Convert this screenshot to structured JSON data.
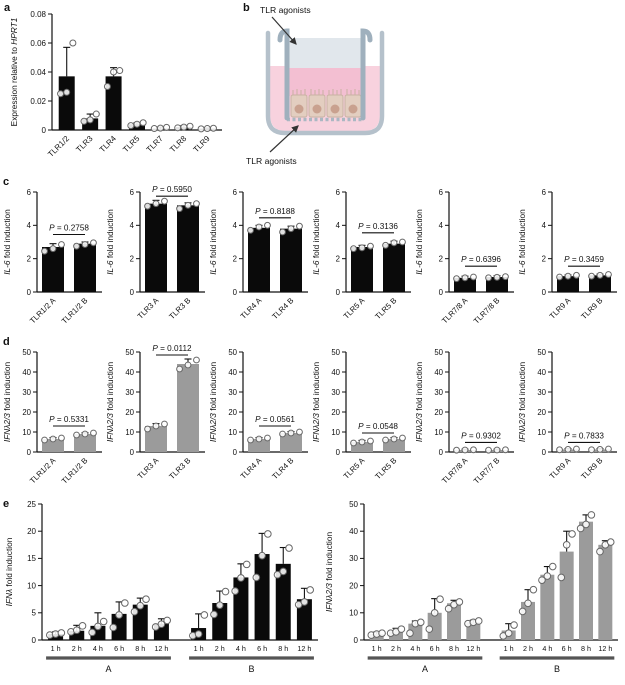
{
  "panels": {
    "a": "a",
    "b": "b",
    "c": "c",
    "d": "d",
    "e": "e"
  },
  "panel_b": {
    "top_label": "TLR agonists",
    "bottom_label": "TLR agonists",
    "colors": {
      "outer_wall": "#b5c1cb",
      "outer_liquid": "#f8d2de",
      "insert_wall": "#9fb0bd",
      "insert_top_medium": "#e1e7ec",
      "insert_pink_medium": "#f3bfd2",
      "cell_body": "#e3cec0",
      "cell_outline": "#c9b2a3",
      "cell_nucleus": "#c9a18f",
      "arrow": "#333333"
    }
  },
  "chart_data": [
    {
      "id": "a",
      "type": "bar",
      "bar_color": "#0a0a0a",
      "ylabel": [
        {
          "t": "Expression relative to ",
          "i": false
        },
        {
          "t": "HPRT1",
          "i": true
        }
      ],
      "ylim": [
        0,
        0.08
      ],
      "yticks": [
        0,
        0.02,
        0.04,
        0.06,
        0.08
      ],
      "ytick_labels": [
        "0",
        "0.02",
        "0.04",
        "0.06",
        "0.08"
      ],
      "bars": [
        {
          "label": "TLR1/2",
          "value": 0.037,
          "err": 0.057,
          "dots": [
            0.025,
            0.026,
            0.06
          ]
        },
        {
          "label": "TLR3",
          "value": 0.008,
          "err": 0.011,
          "dots": [
            0.006,
            0.007,
            0.011
          ]
        },
        {
          "label": "TLR4",
          "value": 0.037,
          "err": 0.043,
          "dots": [
            0.03,
            0.04,
            0.041
          ]
        },
        {
          "label": "TLR5",
          "value": 0.004,
          "err": 0.005,
          "dots": [
            0.003,
            0.004,
            0.005
          ]
        },
        {
          "label": "TLR7",
          "value": 0.001,
          "err": 0.002,
          "dots": [
            0.001,
            0.0013,
            0.0018
          ]
        },
        {
          "label": "TLR8",
          "value": 0.002,
          "err": 0.003,
          "dots": [
            0.0015,
            0.002,
            0.0026
          ]
        },
        {
          "label": "TLR9",
          "value": 0.001,
          "err": 0.0014,
          "dots": [
            0.0008,
            0.001,
            0.0012
          ]
        }
      ]
    },
    {
      "id": "c1",
      "type": "bar",
      "bar_color": "#0a0a0a",
      "ylabel": [
        {
          "t": "IL-6",
          "i": true
        },
        {
          "t": " fold induction",
          "i": false
        }
      ],
      "ylim": [
        0,
        6
      ],
      "yticks": [
        0,
        2,
        4,
        6
      ],
      "ytick_labels": [
        "0",
        "2",
        "4",
        "6"
      ],
      "p": {
        "label": "P = 0.2758",
        "y": 3.45
      },
      "bars": [
        {
          "label": "TLR1/2 A",
          "value": 2.7,
          "err": 2.9,
          "dots": [
            2.45,
            2.6,
            2.85
          ]
        },
        {
          "label": "TLR1/2 B",
          "value": 2.9,
          "err": 3.0,
          "dots": [
            2.75,
            2.85,
            2.95
          ]
        }
      ]
    },
    {
      "id": "c2",
      "type": "bar",
      "bar_color": "#0a0a0a",
      "ylabel": [
        {
          "t": "IL-6",
          "i": true
        },
        {
          "t": " fold induction",
          "i": false
        }
      ],
      "ylim": [
        0,
        6
      ],
      "yticks": [
        0,
        2,
        4,
        6
      ],
      "ytick_labels": [
        "0",
        "2",
        "4",
        "6"
      ],
      "p": {
        "label": "P = 0.5950",
        "y": 5.75
      },
      "bars": [
        {
          "label": "TLR3 A",
          "value": 5.3,
          "err": 5.5,
          "dots": [
            5.15,
            5.3,
            5.45
          ]
        },
        {
          "label": "TLR3 B",
          "value": 5.2,
          "err": 5.35,
          "dots": [
            5.0,
            5.2,
            5.3
          ]
        }
      ]
    },
    {
      "id": "c3",
      "type": "bar",
      "bar_color": "#0a0a0a",
      "ylabel": [
        {
          "t": "IL-6",
          "i": true
        },
        {
          "t": " fold induction",
          "i": false
        }
      ],
      "ylim": [
        0,
        6
      ],
      "yticks": [
        0,
        2,
        4,
        6
      ],
      "ytick_labels": [
        "0",
        "2",
        "4",
        "6"
      ],
      "p": {
        "label": "P = 0.8188",
        "y": 4.45
      },
      "bars": [
        {
          "label": "TLR4 A",
          "value": 3.85,
          "err": 4.0,
          "dots": [
            3.7,
            3.9,
            4.0
          ]
        },
        {
          "label": "TLR4 B",
          "value": 3.8,
          "err": 3.95,
          "dots": [
            3.6,
            3.8,
            3.95
          ]
        }
      ]
    },
    {
      "id": "c4",
      "type": "bar",
      "bar_color": "#0a0a0a",
      "ylabel": [
        {
          "t": "IL-6",
          "i": true
        },
        {
          "t": " fold induction",
          "i": false
        }
      ],
      "ylim": [
        0,
        6
      ],
      "yticks": [
        0,
        2,
        4,
        6
      ],
      "ytick_labels": [
        "0",
        "2",
        "4",
        "6"
      ],
      "p": {
        "label": "P = 0.3136",
        "y": 3.55
      },
      "bars": [
        {
          "label": "TLR5 A",
          "value": 2.7,
          "err": 2.8,
          "dots": [
            2.6,
            2.65,
            2.75
          ]
        },
        {
          "label": "TLR5 B",
          "value": 2.9,
          "err": 3.05,
          "dots": [
            2.8,
            2.95,
            3.0
          ]
        }
      ]
    },
    {
      "id": "c5",
      "type": "bar",
      "bar_color": "#0a0a0a",
      "ylabel": [
        {
          "t": "IL-6",
          "i": true
        },
        {
          "t": " fold induction",
          "i": false
        }
      ],
      "ylim": [
        0,
        6
      ],
      "yticks": [
        0,
        2,
        4,
        6
      ],
      "ytick_labels": [
        "0",
        "2",
        "4",
        "6"
      ],
      "p": {
        "label": "P = 0.6396",
        "y": 1.55
      },
      "bars": [
        {
          "label": "TLR7/8 A",
          "value": 0.85,
          "err": 0.95,
          "dots": [
            0.8,
            0.85,
            0.9
          ]
        },
        {
          "label": "TLR7/8 B",
          "value": 0.9,
          "err": 0.97,
          "dots": [
            0.85,
            0.88,
            0.92
          ]
        }
      ]
    },
    {
      "id": "c6",
      "type": "bar",
      "bar_color": "#0a0a0a",
      "ylabel": [
        {
          "t": "IL-6",
          "i": true
        },
        {
          "t": " fold induction",
          "i": false
        }
      ],
      "ylim": [
        0,
        6
      ],
      "yticks": [
        0,
        2,
        4,
        6
      ],
      "ytick_labels": [
        "0",
        "2",
        "4",
        "6"
      ],
      "p": {
        "label": "P = 0.3459",
        "y": 1.55
      },
      "bars": [
        {
          "label": "TLR9 A",
          "value": 0.95,
          "err": 1.02,
          "dots": [
            0.9,
            0.95,
            1.0
          ]
        },
        {
          "label": "TLR9 B",
          "value": 1.0,
          "err": 1.07,
          "dots": [
            0.95,
            1.0,
            1.05
          ]
        }
      ]
    },
    {
      "id": "d1",
      "type": "bar",
      "bar_color": "#9b9b9b",
      "ylabel": [
        {
          "t": "IFNλ2/3",
          "i": true
        },
        {
          "t": " fold induction",
          "i": false
        }
      ],
      "ylim": [
        0,
        50
      ],
      "yticks": [
        0,
        10,
        20,
        30,
        40,
        50
      ],
      "ytick_labels": [
        "0",
        "10",
        "20",
        "30",
        "40",
        "50"
      ],
      "p": {
        "label": "P = 0.5331",
        "y": 13
      },
      "bars": [
        {
          "label": "TLR1/2 A",
          "value": 6.5,
          "err": 7.2,
          "dots": [
            6,
            6.5,
            7
          ]
        },
        {
          "label": "TLR1/2 B",
          "value": 9,
          "err": 9.6,
          "dots": [
            8.5,
            9,
            9.5
          ]
        }
      ]
    },
    {
      "id": "d2",
      "type": "bar",
      "bar_color": "#9b9b9b",
      "ylabel": [
        {
          "t": "IFNλ2/3",
          "i": true
        },
        {
          "t": " fold induction",
          "i": false
        }
      ],
      "ylim": [
        0,
        50
      ],
      "yticks": [
        0,
        10,
        20,
        30,
        40,
        50
      ],
      "ytick_labels": [
        "0",
        "10",
        "20",
        "30",
        "40",
        "50"
      ],
      "p": {
        "label": "P = 0.0112",
        "y": 48.5
      },
      "bars": [
        {
          "label": "TLR3 A",
          "value": 13,
          "err": 14.2,
          "dots": [
            11.5,
            13,
            14
          ]
        },
        {
          "label": "TLR3 B",
          "value": 44,
          "err": 46.5,
          "dots": [
            41.5,
            43.5,
            46
          ]
        }
      ]
    },
    {
      "id": "d3",
      "type": "bar",
      "bar_color": "#9b9b9b",
      "ylabel": [
        {
          "t": "IFNλ2/3",
          "i": true
        },
        {
          "t": " fold induction",
          "i": false
        }
      ],
      "ylim": [
        0,
        50
      ],
      "yticks": [
        0,
        10,
        20,
        30,
        40,
        50
      ],
      "ytick_labels": [
        "0",
        "10",
        "20",
        "30",
        "40",
        "50"
      ],
      "p": {
        "label": "P = 0.0561",
        "y": 13
      },
      "bars": [
        {
          "label": "TLR4 A",
          "value": 6.5,
          "err": 7.2,
          "dots": [
            6,
            6.5,
            7
          ]
        },
        {
          "label": "TLR4 B",
          "value": 9.5,
          "err": 10.2,
          "dots": [
            9,
            9.5,
            10
          ]
        }
      ]
    },
    {
      "id": "d4",
      "type": "bar",
      "bar_color": "#9b9b9b",
      "ylabel": [
        {
          "t": "IFNλ2/3",
          "i": true
        },
        {
          "t": " fold induction",
          "i": false
        }
      ],
      "ylim": [
        0,
        50
      ],
      "yticks": [
        0,
        10,
        20,
        30,
        40,
        50
      ],
      "ytick_labels": [
        "0",
        "10",
        "20",
        "30",
        "40",
        "50"
      ],
      "p": {
        "label": "P = 0.0548",
        "y": 9.5
      },
      "bars": [
        {
          "label": "TLR5 A",
          "value": 5,
          "err": 5.8,
          "dots": [
            4.5,
            5,
            5.5
          ]
        },
        {
          "label": "TLR5 B",
          "value": 6.5,
          "err": 7.2,
          "dots": [
            6,
            6.5,
            7
          ]
        }
      ]
    },
    {
      "id": "d5",
      "type": "bar",
      "bar_color": "#9b9b9b",
      "ylabel": [
        {
          "t": "IFNλ2/3",
          "i": true
        },
        {
          "t": " fold induction",
          "i": false
        }
      ],
      "ylim": [
        0,
        50
      ],
      "yticks": [
        0,
        10,
        20,
        30,
        40,
        50
      ],
      "ytick_labels": [
        "0",
        "10",
        "20",
        "30",
        "40",
        "50"
      ],
      "p": {
        "label": "P = 0.9302",
        "y": 4.8
      },
      "bars": [
        {
          "label": "TLR7/8 A",
          "value": 1.0,
          "err": 1.4,
          "dots": [
            0.9,
            1.0,
            1.1
          ]
        },
        {
          "label": "TLR7/7 B",
          "value": 1.0,
          "err": 1.4,
          "dots": [
            0.9,
            1.0,
            1.1
          ]
        }
      ]
    },
    {
      "id": "d6",
      "type": "bar",
      "bar_color": "#9b9b9b",
      "ylabel": [
        {
          "t": "IFNλ2/3",
          "i": true
        },
        {
          "t": " fold induction",
          "i": false
        }
      ],
      "ylim": [
        0,
        50
      ],
      "yticks": [
        0,
        10,
        20,
        30,
        40,
        50
      ],
      "ytick_labels": [
        "0",
        "10",
        "20",
        "30",
        "40",
        "50"
      ],
      "p": {
        "label": "P = 0.7833",
        "y": 4.8
      },
      "bars": [
        {
          "label": "TLR9 A",
          "value": 1.3,
          "err": 1.7,
          "dots": [
            1.1,
            1.3,
            1.5
          ]
        },
        {
          "label": "TLR9 B",
          "value": 1.3,
          "err": 1.7,
          "dots": [
            1.1,
            1.3,
            1.5
          ]
        }
      ]
    },
    {
      "id": "e_left",
      "type": "bar",
      "bar_color": "#0a0a0a",
      "group_split": 6,
      "ylabel": [
        {
          "t": "IFNλ",
          "i": true
        },
        {
          "t": " fold induction",
          "i": false
        }
      ],
      "ylim": [
        0,
        25
      ],
      "yticks": [
        0,
        5,
        10,
        15,
        20,
        25
      ],
      "ytick_labels": [
        "0",
        "5",
        "10",
        "15",
        "20",
        "25"
      ],
      "groups": [
        {
          "label": "A",
          "from": 0,
          "to": 5
        },
        {
          "label": "B",
          "from": 6,
          "to": 11
        }
      ],
      "bars": [
        {
          "label": "1 h",
          "value": 1.1,
          "err": 1.5,
          "dots": [
            0.9,
            1.1,
            1.3
          ]
        },
        {
          "label": "2 h",
          "value": 1.7,
          "err": 2.7,
          "dots": [
            1.5,
            1.8,
            2.6
          ]
        },
        {
          "label": "4 h",
          "value": 2.6,
          "err": 5.0,
          "dots": [
            1.4,
            2.5,
            3.4
          ]
        },
        {
          "label": "6 h",
          "value": 4.8,
          "err": 7.0,
          "dots": [
            2.3,
            4.6,
            6.8
          ]
        },
        {
          "label": "8 h",
          "value": 6.5,
          "err": 7.7,
          "dots": [
            5.2,
            6.3,
            7.5
          ]
        },
        {
          "label": "12 h",
          "value": 3.0,
          "err": 3.9,
          "dots": [
            2.4,
            2.9,
            3.6
          ]
        },
        {
          "label": "1 h",
          "value": 2.2,
          "err": 4.8,
          "dots": [
            0.8,
            1.1,
            4.6
          ]
        },
        {
          "label": "2 h",
          "value": 6.8,
          "err": 9.0,
          "dots": [
            4.7,
            6.4,
            8.9
          ]
        },
        {
          "label": "4 h",
          "value": 11.5,
          "err": 14.0,
          "dots": [
            9.0,
            11.4,
            13.9
          ]
        },
        {
          "label": "6 h",
          "value": 15.8,
          "err": 19.6,
          "dots": [
            11.5,
            15.5,
            19.5
          ]
        },
        {
          "label": "8 h",
          "value": 14.0,
          "err": 17.0,
          "dots": [
            12.0,
            12.6,
            16.9
          ]
        },
        {
          "label": "12 h",
          "value": 7.5,
          "err": 9.5,
          "dots": [
            6.5,
            7.0,
            9.2
          ]
        }
      ]
    },
    {
      "id": "e_right",
      "type": "bar",
      "bar_color": "#9b9b9b",
      "group_split": 6,
      "ylabel": [
        {
          "t": "IFNλ2/3",
          "i": true
        },
        {
          "t": " fold induction",
          "i": false
        }
      ],
      "ylim": [
        0,
        50
      ],
      "yticks": [
        0,
        10,
        20,
        30,
        40,
        50
      ],
      "ytick_labels": [
        "0",
        "10",
        "20",
        "30",
        "40",
        "50"
      ],
      "groups": [
        {
          "label": "A",
          "from": 0,
          "to": 5
        },
        {
          "label": "B",
          "from": 6,
          "to": 11
        }
      ],
      "bars": [
        {
          "label": "1 h",
          "value": 2.2,
          "err": 2.9,
          "dots": [
            1.8,
            2.2,
            2.5
          ]
        },
        {
          "label": "2 h",
          "value": 3.2,
          "err": 4.3,
          "dots": [
            2.5,
            3.0,
            4.0
          ]
        },
        {
          "label": "4 h",
          "value": 6.0,
          "err": 7.0,
          "dots": [
            2.5,
            6.0,
            6.5
          ]
        },
        {
          "label": "6 h",
          "value": 10.0,
          "err": 15.2,
          "dots": [
            4.0,
            10.0,
            15.0
          ]
        },
        {
          "label": "8 h",
          "value": 13.5,
          "err": 14.6,
          "dots": [
            11.5,
            13.0,
            14.0
          ]
        },
        {
          "label": "12 h",
          "value": 6.5,
          "err": 7.3,
          "dots": [
            6.0,
            6.5,
            7.0
          ]
        },
        {
          "label": "1 h",
          "value": 3.5,
          "err": 6.0,
          "dots": [
            1.5,
            2.5,
            5.5
          ]
        },
        {
          "label": "2 h",
          "value": 14.0,
          "err": 18.5,
          "dots": [
            10.5,
            13.5,
            18.5
          ]
        },
        {
          "label": "4 h",
          "value": 24.0,
          "err": 27.0,
          "dots": [
            22.0,
            23.5,
            27.0
          ]
        },
        {
          "label": "6 h",
          "value": 32.5,
          "err": 40.0,
          "dots": [
            23.0,
            35.0,
            39.0
          ]
        },
        {
          "label": "8 h",
          "value": 43.5,
          "err": 46.0,
          "dots": [
            41.0,
            42.5,
            46.0
          ]
        },
        {
          "label": "12 h",
          "value": 35.0,
          "err": 36.5,
          "dots": [
            32.5,
            35.0,
            36.0
          ]
        }
      ]
    }
  ]
}
